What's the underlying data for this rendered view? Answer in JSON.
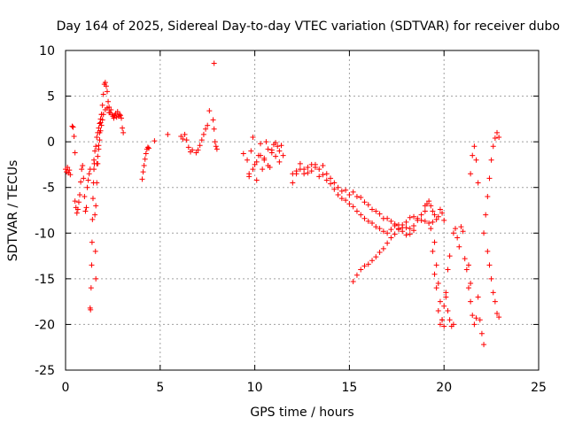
{
  "chart_data": {
    "type": "scatter",
    "title": "Day 164 of 2025, Sidereal Day-to-day VTEC variation (SDTVAR) for receiver dubo",
    "xlabel": "GPS time / hours",
    "ylabel": "SDTVAR / TECUs",
    "xlim": [
      0,
      25
    ],
    "ylim": [
      -25,
      10
    ],
    "xticks": [
      0,
      5,
      10,
      15,
      20,
      25
    ],
    "yticks": [
      -25,
      -20,
      -15,
      -10,
      -5,
      0,
      5,
      10
    ],
    "xtick_labels": [
      "0",
      "5",
      "10",
      "15",
      "20",
      "25"
    ],
    "ytick_labels": [
      "-25",
      "-20",
      "-15",
      "-10",
      "-5",
      "0",
      "5",
      "10"
    ],
    "grid": true,
    "marker": "+",
    "color": "#ff0000",
    "series": [
      {
        "name": "start",
        "x": [
          0.0,
          0.05,
          0.1,
          0.15,
          0.2,
          0.25
        ],
        "y": [
          -3.0,
          -3.3,
          -2.8,
          -3.4,
          -3.1,
          -3.6
        ]
      },
      {
        "name": "seg-a",
        "x": [
          0.35,
          0.4,
          0.45,
          0.5
        ],
        "y": [
          1.7,
          1.6,
          0.6,
          -1.2
        ]
      },
      {
        "name": "seg-b",
        "x": [
          0.5,
          0.55,
          0.6,
          0.65,
          0.7,
          0.75,
          0.8,
          0.85,
          0.9,
          0.95,
          1.0,
          1.05,
          1.1,
          1.15,
          1.2,
          1.25,
          1.3
        ],
        "y": [
          -6.5,
          -7.2,
          -7.8,
          -7.4,
          -6.6,
          -5.8,
          -4.4,
          -3.0,
          -2.6,
          -4.0,
          -6.0,
          -7.6,
          -7.2,
          -5.0,
          -4.2,
          -3.5,
          -3.0
        ]
      },
      {
        "name": "drop",
        "x": [
          1.3,
          1.32,
          1.35,
          1.38,
          1.4,
          1.42,
          1.45,
          1.48,
          1.5,
          1.52,
          1.55,
          1.58,
          1.6
        ],
        "y": [
          -18.2,
          -18.4,
          -16.0,
          -13.5,
          -11.0,
          -8.5,
          -6.2,
          -4.5,
          -3.0,
          -2.4,
          -8.0,
          -12.0,
          -15.0
        ]
      },
      {
        "name": "rise",
        "x": [
          1.6,
          1.65,
          1.7,
          1.75,
          1.8,
          1.85,
          1.9,
          1.95,
          2.0,
          2.05,
          2.1,
          2.15,
          2.2,
          2.25,
          2.3,
          2.35,
          2.4,
          2.45,
          2.5,
          2.55,
          2.6,
          2.65,
          2.7,
          2.75,
          2.8,
          2.85,
          2.9,
          2.95,
          3.0,
          3.05
        ],
        "y": [
          -7.0,
          -4.5,
          -2.4,
          -0.4,
          1.0,
          2.1,
          3.0,
          4.0,
          5.2,
          6.3,
          6.5,
          6.1,
          5.5,
          4.4,
          3.8,
          3.2,
          3.5,
          3.0,
          2.8,
          2.6,
          2.9,
          3.1,
          2.7,
          3.3,
          2.8,
          3.0,
          2.9,
          2.6,
          1.5,
          1.0
        ]
      },
      {
        "name": "rise-lower",
        "x": [
          1.65,
          1.7,
          1.75,
          1.8,
          1.85,
          1.9,
          1.95,
          2.0,
          2.1,
          2.2,
          2.3
        ],
        "y": [
          -2.4,
          -1.6,
          -0.8,
          0.2,
          1.2,
          1.8,
          2.4,
          3.0,
          3.5,
          3.7,
          3.2
        ]
      },
      {
        "name": "blob-1.5",
        "x": [
          1.5,
          1.55,
          1.6,
          1.65,
          1.7,
          1.75,
          1.8,
          1.85,
          1.9
        ],
        "y": [
          -2.0,
          -1.0,
          -0.5,
          0.5,
          1.0,
          1.5,
          2.0,
          2.5,
          3.0
        ]
      },
      {
        "name": "seg-4",
        "x": [
          4.05,
          4.1,
          4.15,
          4.2,
          4.25,
          4.3,
          4.35,
          4.4
        ],
        "y": [
          -4.1,
          -3.3,
          -2.6,
          -1.9,
          -1.3,
          -0.8,
          -0.6,
          -0.7
        ]
      },
      {
        "name": "iso-4.7",
        "x": [
          4.7,
          5.4
        ],
        "y": [
          0.1,
          0.8
        ]
      },
      {
        "name": "seg-6",
        "x": [
          6.1,
          6.2,
          6.3,
          6.4,
          6.5,
          6.6,
          6.7
        ],
        "y": [
          0.6,
          0.3,
          0.8,
          0.2,
          -0.6,
          -1.1,
          -0.9
        ]
      },
      {
        "name": "seg-7",
        "x": [
          6.9,
          7.0,
          7.1,
          7.2,
          7.3,
          7.4,
          7.5,
          7.6
        ],
        "y": [
          -1.2,
          -0.9,
          -0.4,
          0.2,
          0.8,
          1.4,
          1.8,
          3.4
        ]
      },
      {
        "name": "seg-7.8",
        "x": [
          7.8,
          7.85,
          7.9,
          7.95,
          8.0
        ],
        "y": [
          2.4,
          1.4,
          0.0,
          -0.5,
          -0.8
        ]
      },
      {
        "name": "spike",
        "x": [
          7.85
        ],
        "y": [
          8.6
        ]
      },
      {
        "name": "iso-9.4",
        "x": [
          9.4
        ],
        "y": [
          -1.3
        ]
      },
      {
        "name": "cluster-10",
        "x": [
          9.6,
          9.7,
          9.8,
          9.9,
          10.0,
          10.1,
          10.2,
          10.3,
          10.4,
          10.5,
          10.6,
          10.7,
          10.8,
          10.9,
          11.0,
          11.1,
          11.2,
          11.3,
          11.4,
          11.5
        ],
        "y": [
          -2.0,
          -3.5,
          -1.0,
          0.5,
          -2.5,
          -4.2,
          -1.5,
          -0.2,
          -3.0,
          -1.8,
          0.0,
          -0.8,
          -2.8,
          -1.2,
          -0.3,
          -1.6,
          -0.5,
          -1.0,
          -0.4,
          -1.5
        ]
      },
      {
        "name": "cluster-10b",
        "x": [
          9.7,
          9.9,
          10.1,
          10.3,
          10.5,
          10.7,
          10.9,
          11.1,
          11.3
        ],
        "y": [
          -3.8,
          -3.0,
          -2.2,
          -1.5,
          -2.0,
          -2.6,
          -0.9,
          -0.1,
          -2.2
        ]
      },
      {
        "name": "band-12",
        "x": [
          12.0,
          12.2,
          12.4,
          12.6,
          12.8,
          13.0,
          13.2,
          13.4,
          13.6,
          13.8,
          14.0,
          14.2,
          14.4,
          14.6,
          14.8,
          15.0,
          15.2,
          15.4,
          15.6,
          15.8,
          16.0,
          16.2,
          16.4,
          16.6,
          16.8,
          17.0,
          17.2,
          17.4,
          17.6,
          17.8,
          18.0,
          18.2,
          18.4,
          18.6,
          18.8,
          19.0
        ],
        "y": [
          -4.5,
          -3.5,
          -3.0,
          -3.0,
          -2.8,
          -2.5,
          -2.8,
          -3.0,
          -2.6,
          -3.5,
          -4.0,
          -4.5,
          -5.0,
          -5.4,
          -5.3,
          -5.8,
          -5.5,
          -6.0,
          -6.1,
          -6.6,
          -6.9,
          -7.4,
          -7.6,
          -7.9,
          -8.4,
          -8.4,
          -8.7,
          -9.0,
          -9.1,
          -9.4,
          -9.4,
          -9.5,
          -9.2,
          -8.6,
          -8.0,
          -7.6
        ]
      },
      {
        "name": "band-12b",
        "x": [
          12.0,
          12.2,
          12.4,
          12.6,
          12.8,
          13.0,
          13.2,
          13.4,
          13.6,
          13.8,
          14.0,
          14.2,
          14.4,
          14.6,
          14.8,
          15.0,
          15.2,
          15.4,
          15.6,
          15.8,
          16.0,
          16.2,
          16.4,
          16.6,
          16.8,
          17.0,
          17.2,
          17.4,
          17.6,
          17.8,
          18.0,
          18.2,
          18.4
        ],
        "y": [
          -3.5,
          -3.2,
          -2.4,
          -3.5,
          -3.4,
          -3.2,
          -2.5,
          -3.8,
          -3.6,
          -4.2,
          -4.6,
          -5.2,
          -5.8,
          -6.2,
          -6.4,
          -6.8,
          -7.1,
          -7.6,
          -8.0,
          -8.4,
          -8.7,
          -8.9,
          -9.3,
          -9.5,
          -9.8,
          -10.0,
          -9.6,
          -9.2,
          -9.5,
          -9.8,
          -10.2,
          -10.1,
          -9.7
        ]
      },
      {
        "name": "lower-line",
        "x": [
          15.2,
          15.4,
          15.6,
          15.8,
          16.0,
          16.2,
          16.4,
          16.6,
          16.8,
          17.0,
          17.2,
          17.4,
          17.6,
          17.8,
          18.0,
          18.2,
          18.4,
          18.6,
          18.8,
          19.0,
          19.2,
          19.4
        ],
        "y": [
          -15.3,
          -14.6,
          -14.0,
          -13.6,
          -13.4,
          -13.0,
          -12.6,
          -12.1,
          -11.7,
          -11.1,
          -10.5,
          -10.1,
          -9.6,
          -9.1,
          -8.8,
          -8.3,
          -8.2,
          -8.4,
          -8.6,
          -8.7,
          -8.9,
          -8.8
        ]
      },
      {
        "name": "peak-19",
        "x": [
          19.0,
          19.1,
          19.2,
          19.3,
          19.4,
          19.5,
          19.6,
          19.7,
          19.8,
          19.9,
          20.0
        ],
        "y": [
          -7.0,
          -6.8,
          -6.5,
          -7.0,
          -7.6,
          -8.0,
          -8.5,
          -8.2,
          -7.4,
          -7.8,
          -8.6
        ]
      },
      {
        "name": "dip-19.5",
        "x": [
          19.3,
          19.4,
          19.5,
          19.6,
          19.7,
          19.8,
          19.9,
          20.0,
          20.1,
          20.2,
          20.3,
          20.4,
          20.5
        ],
        "y": [
          -9.5,
          -12.0,
          -14.5,
          -16.0,
          -18.5,
          -20.0,
          -19.5,
          -18.0,
          -16.5,
          -18.5,
          -19.5,
          -20.2,
          -20.0
        ]
      },
      {
        "name": "dip-19.5b",
        "x": [
          19.5,
          19.6,
          19.7,
          19.8,
          19.9,
          20.0,
          20.1,
          20.2,
          20.3
        ],
        "y": [
          -11.0,
          -13.5,
          -15.5,
          -17.5,
          -19.5,
          -20.2,
          -17.0,
          -14.0,
          -12.5
        ]
      },
      {
        "name": "region-20.5",
        "x": [
          20.5,
          20.6,
          20.7,
          20.8,
          20.9,
          21.0,
          21.1,
          21.2,
          21.3,
          21.4
        ],
        "y": [
          -10.0,
          -9.5,
          -10.5,
          -11.5,
          -9.3,
          -9.8,
          -12.8,
          -14.0,
          -13.5,
          -15.5
        ]
      },
      {
        "name": "spike-21.5",
        "x": [
          21.4,
          21.5,
          21.6,
          21.7,
          21.8
        ],
        "y": [
          -3.5,
          -1.5,
          -0.5,
          -2.0,
          -4.5
        ]
      },
      {
        "name": "dip-21.8",
        "x": [
          21.3,
          21.4,
          21.5,
          21.6,
          21.7,
          21.8,
          21.9,
          22.0,
          22.1
        ],
        "y": [
          -16.0,
          -17.5,
          -19.0,
          -20.0,
          -19.3,
          -17.0,
          -19.5,
          -21.0,
          -22.2
        ]
      },
      {
        "name": "rise-22.5",
        "x": [
          22.1,
          22.2,
          22.3,
          22.4,
          22.5,
          22.6,
          22.7,
          22.8,
          22.9
        ],
        "y": [
          -10.0,
          -8.0,
          -6.0,
          -4.0,
          -2.0,
          -0.5,
          0.4,
          1.0,
          0.5
        ]
      },
      {
        "name": "fall-22.5",
        "x": [
          22.3,
          22.4,
          22.5,
          22.6,
          22.7,
          22.8,
          22.9
        ],
        "y": [
          -12.0,
          -13.5,
          -15.0,
          -16.5,
          -17.5,
          -18.8,
          -19.2
        ]
      }
    ]
  }
}
